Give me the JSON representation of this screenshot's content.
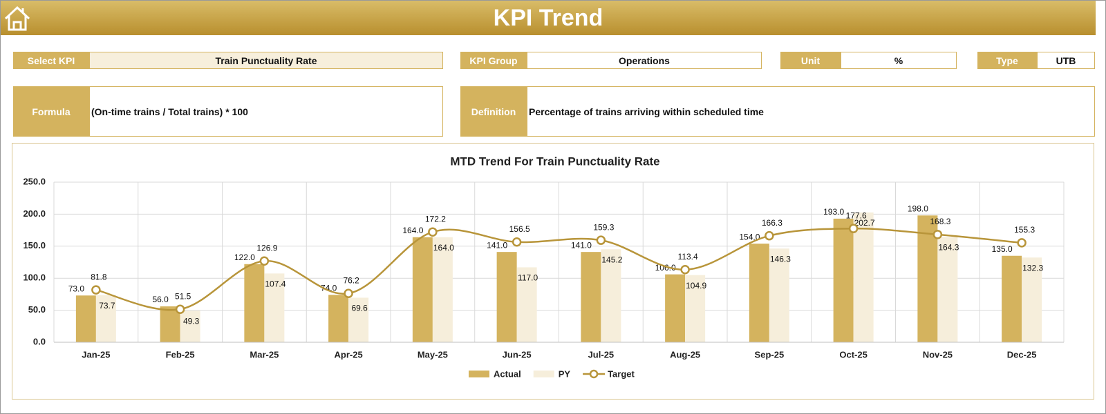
{
  "header": {
    "title": "KPI Trend"
  },
  "fields": {
    "select_kpi": {
      "label": "Select KPI",
      "value": "Train Punctuality Rate"
    },
    "kpi_group": {
      "label": "KPI Group",
      "value": "Operations"
    },
    "unit": {
      "label": "Unit",
      "value": "%"
    },
    "type": {
      "label": "Type",
      "value": "UTB"
    },
    "formula": {
      "label": "Formula",
      "value": "(On-time trains / Total trains) * 100"
    },
    "definition": {
      "label": "Definition",
      "value": "Percentage of trains arriving within scheduled time"
    }
  },
  "chart_data": {
    "type": "bar",
    "title": "MTD Trend For Train Punctuality Rate",
    "categories": [
      "Jan-25",
      "Feb-25",
      "Mar-25",
      "Apr-25",
      "May-25",
      "Jun-25",
      "Jul-25",
      "Aug-25",
      "Sep-25",
      "Oct-25",
      "Nov-25",
      "Dec-25"
    ],
    "series": [
      {
        "name": "Actual",
        "type": "bar",
        "color": "#d4b35e",
        "values": [
          73,
          56,
          122,
          74,
          164,
          141,
          141,
          106,
          154,
          193,
          198,
          135
        ],
        "value_labels": [
          "73.0",
          "56.0",
          "122.0",
          "74.0",
          "164.0",
          "141.0",
          "141.0",
          "106.0",
          "154.0",
          "193.0",
          "198.0",
          "135.0"
        ]
      },
      {
        "name": "PY",
        "type": "bar",
        "color": "#f6eedb",
        "values": [
          73.7,
          49.3,
          107.4,
          69.6,
          164,
          117,
          145.2,
          104.9,
          146.3,
          202.7,
          164.3,
          132.3
        ],
        "value_labels": [
          "73.7",
          "49.3",
          "107.4",
          "69.6",
          "164.0",
          "117.0",
          "145.2",
          "104.9",
          "146.3",
          "202.7",
          "164.3",
          "132.3"
        ]
      },
      {
        "name": "Target",
        "type": "line",
        "color": "#b8953a",
        "values": [
          81.8,
          51.5,
          126.9,
          76.2,
          172.2,
          156.5,
          159.3,
          113.4,
          166.3,
          177.6,
          168.3,
          155.3
        ]
      }
    ],
    "ylim": [
      0,
      250
    ],
    "yticks": [
      {
        "value": 0,
        "label": "0.0"
      },
      {
        "value": 50,
        "label": "50.0"
      },
      {
        "value": 100,
        "label": "100.0"
      },
      {
        "value": 150,
        "label": "150.0"
      },
      {
        "value": 200,
        "label": "200.0"
      },
      {
        "value": 250,
        "label": "250.0"
      }
    ],
    "grid": true,
    "legend": "bottom"
  }
}
